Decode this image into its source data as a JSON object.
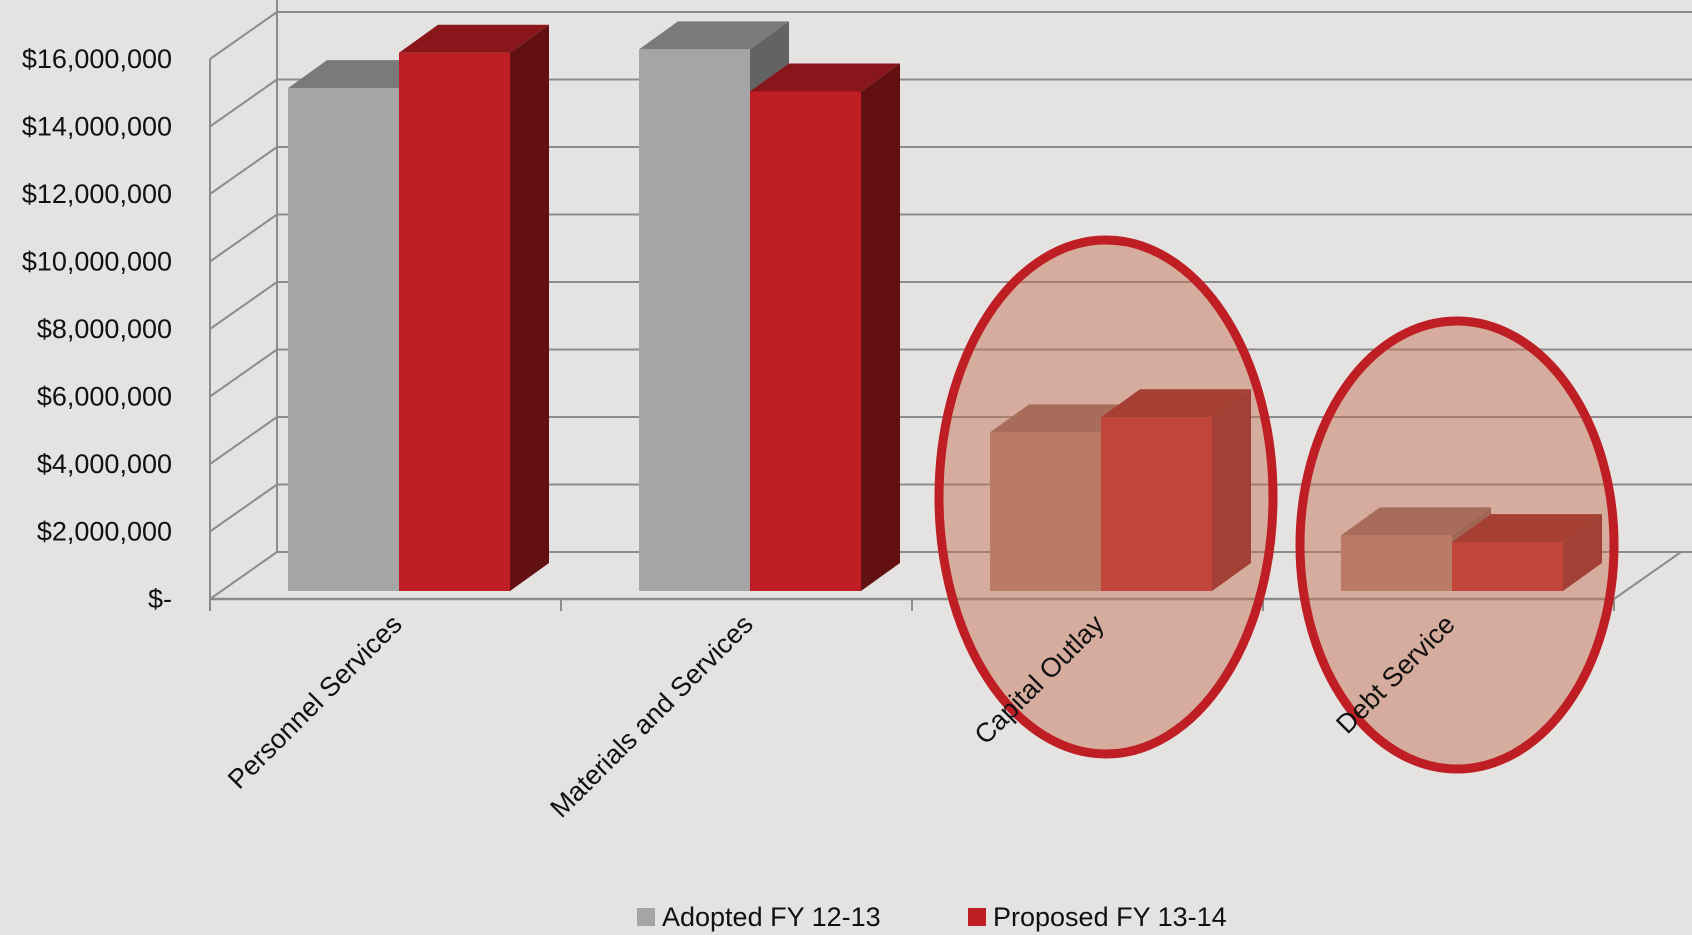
{
  "chart_data": {
    "type": "bar",
    "title": "",
    "xlabel": "",
    "ylabel": "",
    "categories": [
      "Personnel Services",
      "Materials and Services",
      "Capital Outlay",
      "Debt Service"
    ],
    "series": [
      {
        "name": "Adopted FY 12-13",
        "values": [
          14900000,
          16050000,
          4700000,
          1650000
        ],
        "color": "#a5a5a5"
      },
      {
        "name": "Proposed FY 13-14",
        "values": [
          15950000,
          14800000,
          5150000,
          1450000
        ],
        "color": "#be1e24"
      }
    ],
    "ylim": [
      0,
      16000000
    ],
    "ytick_values": [
      0,
      2000000,
      4000000,
      6000000,
      8000000,
      10000000,
      12000000,
      14000000,
      16000000
    ],
    "ytick_labels": [
      "$-",
      "$2,000,000",
      "$4,000,000",
      "$6,000,000",
      "$8,000,000",
      "$10,000,000",
      "$12,000,000",
      "$14,000,000",
      "$16,000,000"
    ],
    "grid": true,
    "three_d": true,
    "legend_position": "bottom",
    "highlighted_categories": [
      "Capital Outlay",
      "Debt Service"
    ],
    "highlight_color": "#be1e24"
  }
}
